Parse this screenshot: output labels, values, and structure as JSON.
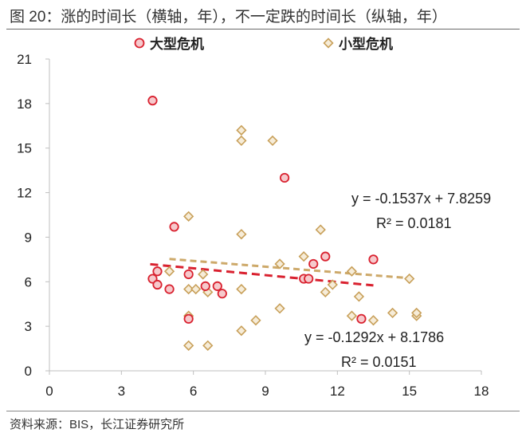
{
  "figure": {
    "title": "图 20：涨的时间长（横轴，年），不一定跌的时间长（纵轴，年）",
    "source": "资料来源：BIS，长江证券研究所"
  },
  "colors": {
    "large_crisis": "#d9212f",
    "small_crisis": "#c8a05a",
    "large_fill": "#f6c9cc",
    "small_fill": "#f6ecd8",
    "axis": "#bfbfbf"
  },
  "chart_data": {
    "type": "scatter",
    "xlim": [
      0,
      18
    ],
    "ylim": [
      0,
      21
    ],
    "x_ticks": [
      0,
      3,
      6,
      9,
      12,
      15,
      18
    ],
    "y_ticks": [
      0,
      3,
      6,
      9,
      12,
      15,
      18,
      21
    ],
    "grid": false,
    "legend_position": "top",
    "series": [
      {
        "name": "大型危机",
        "marker": "circle",
        "points": [
          [
            4.3,
            18.2
          ],
          [
            4.3,
            6.2
          ],
          [
            4.5,
            5.8
          ],
          [
            4.5,
            6.7
          ],
          [
            5.0,
            5.5
          ],
          [
            5.2,
            9.7
          ],
          [
            5.8,
            3.5
          ],
          [
            5.8,
            6.5
          ],
          [
            6.5,
            5.7
          ],
          [
            7.0,
            5.7
          ],
          [
            7.2,
            5.2
          ],
          [
            9.8,
            13.0
          ],
          [
            10.6,
            6.2
          ],
          [
            10.8,
            6.2
          ],
          [
            11.0,
            7.2
          ],
          [
            11.5,
            7.7
          ],
          [
            13.0,
            3.5
          ],
          [
            13.5,
            7.5
          ]
        ],
        "trendline": {
          "equation": "y = -0.1537x + 7.8259",
          "r2": "R² = 0.0181",
          "slope": -0.1537,
          "intercept": 7.8259,
          "x_range": [
            4.2,
            13.5
          ]
        }
      },
      {
        "name": "小型危机",
        "marker": "diamond",
        "points": [
          [
            5.0,
            6.7
          ],
          [
            5.8,
            10.4
          ],
          [
            5.8,
            5.5
          ],
          [
            5.8,
            3.7
          ],
          [
            5.8,
            1.7
          ],
          [
            6.1,
            5.5
          ],
          [
            6.4,
            6.5
          ],
          [
            6.6,
            5.3
          ],
          [
            6.6,
            1.7
          ],
          [
            8.0,
            16.2
          ],
          [
            8.0,
            15.5
          ],
          [
            8.0,
            9.2
          ],
          [
            8.0,
            5.5
          ],
          [
            8.0,
            2.7
          ],
          [
            8.6,
            3.4
          ],
          [
            9.3,
            15.5
          ],
          [
            9.6,
            7.2
          ],
          [
            9.6,
            4.2
          ],
          [
            10.6,
            7.7
          ],
          [
            11.3,
            9.5
          ],
          [
            11.5,
            5.3
          ],
          [
            11.8,
            5.8
          ],
          [
            12.6,
            6.7
          ],
          [
            12.6,
            3.7
          ],
          [
            12.9,
            5.0
          ],
          [
            13.5,
            3.4
          ],
          [
            14.3,
            3.9
          ],
          [
            15.0,
            6.2
          ],
          [
            15.3,
            3.7
          ],
          [
            15.3,
            3.9
          ]
        ],
        "trendline": {
          "equation": "y = -0.1292x + 8.1786",
          "r2": "R² = 0.0151",
          "slope": -0.1292,
          "intercept": 8.1786,
          "x_range": [
            5.0,
            15.3
          ]
        }
      }
    ]
  }
}
